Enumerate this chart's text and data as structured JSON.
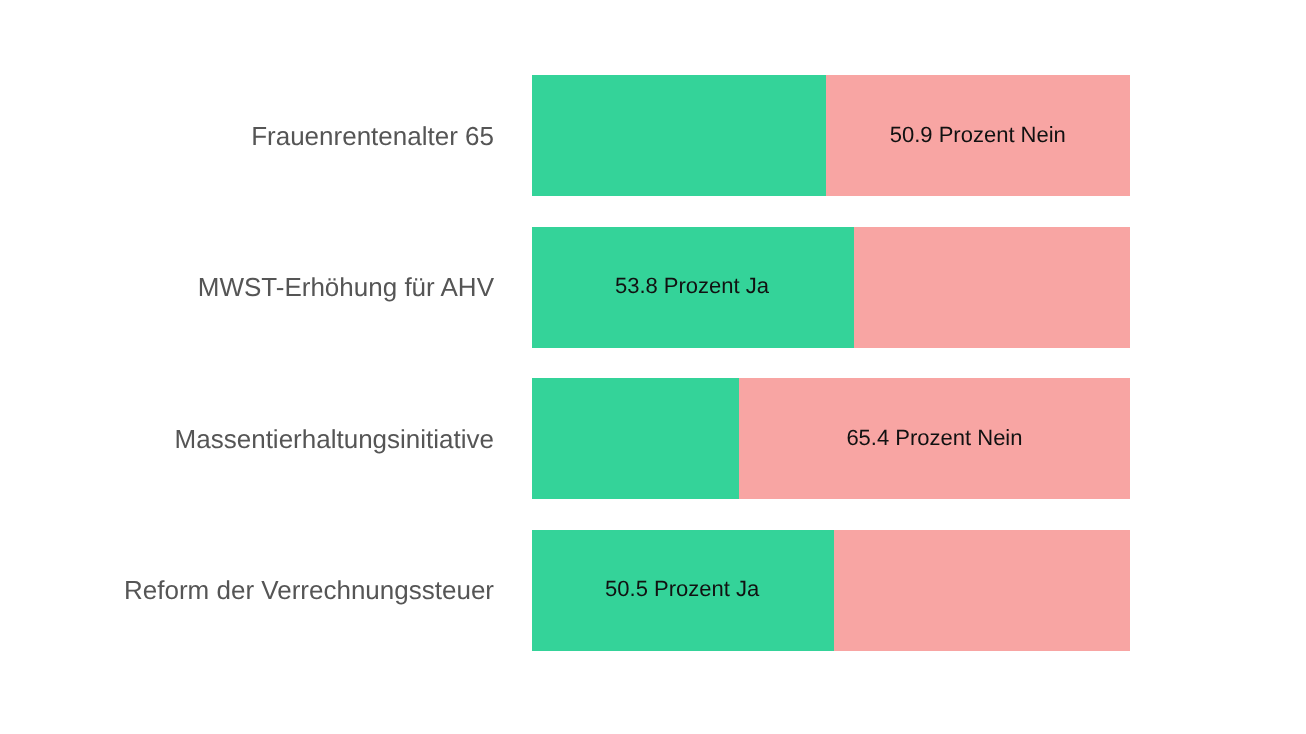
{
  "chart_data": {
    "type": "bar",
    "orientation": "horizontal",
    "stacked": true,
    "categories": [
      "Frauenrentenalter 65",
      "MWST-Erhöhung für AHV",
      "Massentierhaltungsinitiative",
      "Reform der Verrechnungssteuer"
    ],
    "series": [
      {
        "color": "#34d399",
        "values": [
          49.1,
          53.8,
          34.6,
          50.5
        ],
        "value_labels": [
          null,
          "53.8 Prozent Ja",
          null,
          "50.5 Prozent Ja"
        ]
      },
      {
        "color": "#f8a5a3",
        "values": [
          50.9,
          46.2,
          65.4,
          49.5
        ],
        "value_labels": [
          "50.9 Prozent Nein",
          null,
          "65.4 Prozent Nein",
          null
        ]
      }
    ],
    "xlim": [
      0,
      100
    ],
    "tick_labels": "y"
  }
}
